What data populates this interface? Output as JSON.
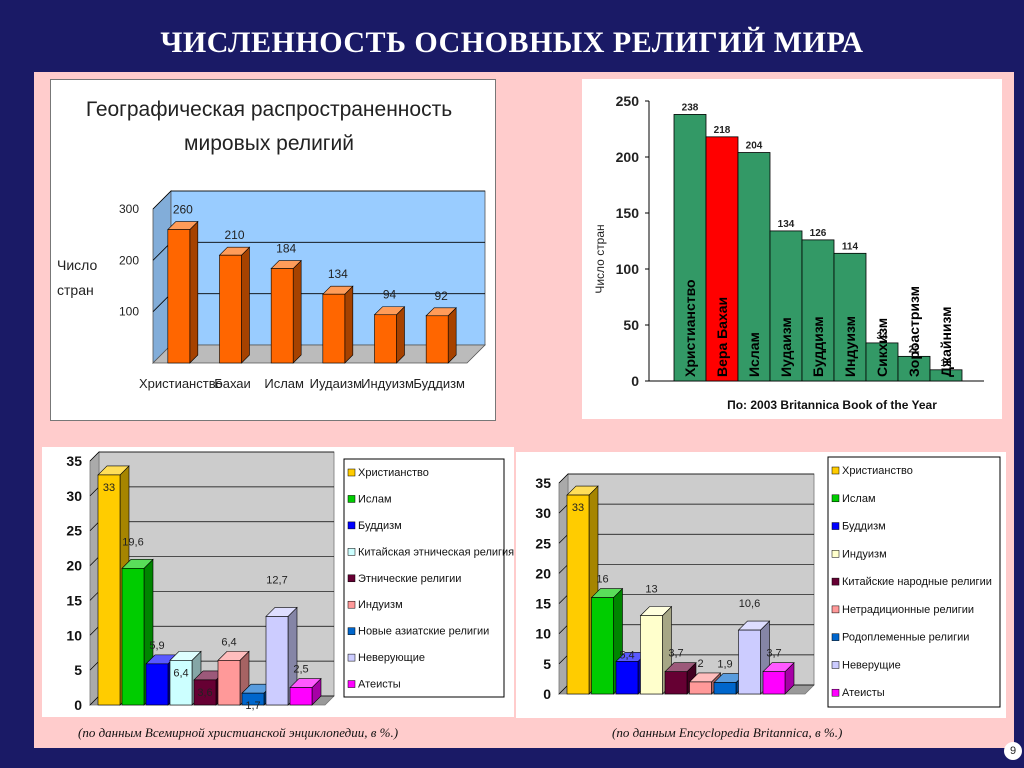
{
  "title": "ЧИСЛЕННОСТЬ ОСНОВНЫХ РЕЛИГИЙ МИРА",
  "page_number": "9",
  "caption_left": "(по данным Всемирной христианской энциклопедии, в %.)",
  "caption_right": "(по данным Encyclopedia Britannica, в %.)",
  "chart_data": [
    {
      "type": "bar",
      "title": "Географическая распространенность мировых религий",
      "ylabel": "Число стран",
      "categories": [
        "Христианство",
        "Бахаи",
        "Ислам",
        "Иудаизм",
        "Индуизм",
        "Буддизм"
      ],
      "values": [
        260,
        210,
        184,
        134,
        94,
        92
      ],
      "value_labels": [
        "260",
        "210",
        "184",
        "134",
        "94",
        "92"
      ],
      "yticks": [
        "100",
        "200",
        "300"
      ],
      "ylim": [
        0,
        300
      ],
      "bar_color": "#ff6600",
      "wall_color": "#99ccff"
    },
    {
      "type": "bar",
      "xlabel": "По: 2003 Britannica Book of the Year",
      "ylabel": "Число стран",
      "categories": [
        "Христианство",
        "Вера Бахаи",
        "Ислам",
        "Иудаизм",
        "Буддизм",
        "Индуизм",
        "Сикхизм",
        "Зороастризм",
        "Джайнизм"
      ],
      "values": [
        238,
        218,
        204,
        134,
        126,
        114,
        34,
        22,
        10
      ],
      "value_labels": [
        "238",
        "218",
        "204",
        "134",
        "126",
        "114",
        "34",
        "22",
        "10"
      ],
      "yticks": [
        "0",
        "50",
        "100",
        "150",
        "200",
        "250"
      ],
      "ylim": [
        0,
        250
      ],
      "bar_color": "#339966",
      "highlight_color": "#ff0000"
    },
    {
      "type": "bar",
      "ylim": [
        0,
        35
      ],
      "yticks": [
        "0",
        "5",
        "10",
        "15",
        "20",
        "25",
        "30",
        "35"
      ],
      "series": [
        {
          "name": "Христианство",
          "value": 33,
          "label": "33",
          "color": "#ffcc00"
        },
        {
          "name": "Ислам",
          "value": 19.6,
          "label": "19,6",
          "color": "#00cc00"
        },
        {
          "name": "Буддизм",
          "value": 5.9,
          "label": "5,9",
          "color": "#0000ff"
        },
        {
          "name": "Китайская этническая религия",
          "value": 6.4,
          "label": "6,4",
          "color": "#ccffff"
        },
        {
          "name": "Этнические религии",
          "value": 3.6,
          "label": "3,6",
          "color": "#660033"
        },
        {
          "name": "Индуизм",
          "value": 6.4,
          "label": "6,4",
          "color": "#ff9999"
        },
        {
          "name": "Новые азиатские религии",
          "value": 1.7,
          "label": "1,7",
          "color": "#0066cc"
        },
        {
          "name": "Неверующие",
          "value": 12.7,
          "label": "12,7",
          "color": "#ccccff"
        },
        {
          "name": "Атеисты",
          "value": 2.5,
          "label": "2,5",
          "color": "#ff00ff"
        }
      ]
    },
    {
      "type": "bar",
      "ylim": [
        0,
        35
      ],
      "yticks": [
        "0",
        "5",
        "10",
        "15",
        "20",
        "25",
        "30",
        "35"
      ],
      "series": [
        {
          "name": "Христианство",
          "value": 33,
          "label": "33",
          "color": "#ffcc00"
        },
        {
          "name": "Ислам",
          "value": 16,
          "label": "16",
          "color": "#00cc00"
        },
        {
          "name": "Буддизм",
          "value": 5.4,
          "label": "5,4",
          "color": "#0000ff"
        },
        {
          "name": "Индуизм",
          "value": 13,
          "label": "13",
          "color": "#ffffcc"
        },
        {
          "name": "Китайские народные религии",
          "value": 3.7,
          "label": "3,7",
          "color": "#660033"
        },
        {
          "name": "Нетрадиционные религии",
          "value": 2,
          "label": "2",
          "color": "#ff9999"
        },
        {
          "name": "Родоплеменные религии",
          "value": 1.9,
          "label": "1,9",
          "color": "#0066cc"
        },
        {
          "name": "Неверущие",
          "value": 10.6,
          "label": "10,6",
          "color": "#ccccff"
        },
        {
          "name": "Атеисты",
          "value": 3.7,
          "label": "3,7",
          "color": "#ff00ff"
        }
      ]
    }
  ]
}
